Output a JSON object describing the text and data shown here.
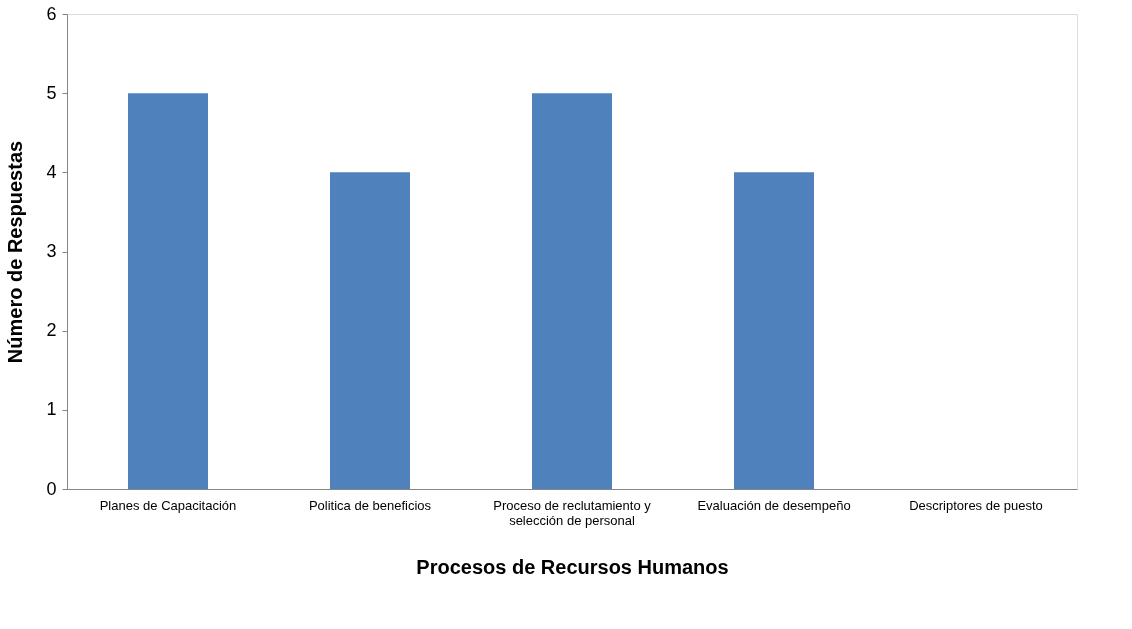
{
  "chart_data": {
    "type": "bar",
    "xlabel": "Procesos de Recursos Humanos",
    "ylabel": "Número de Respuestas",
    "categories": [
      "Planes de Capacitación",
      "Politica de beneficios",
      "Proceso de reclutamiento y selección de personal",
      "Evaluación de desempeño",
      "Descriptores de puesto"
    ],
    "values": [
      5,
      4,
      5,
      4,
      0
    ],
    "color": "#4f81bd",
    "ylim": [
      0,
      6
    ],
    "yticks": [
      0,
      1,
      2,
      3,
      4,
      5,
      6
    ],
    "grid": false
  }
}
